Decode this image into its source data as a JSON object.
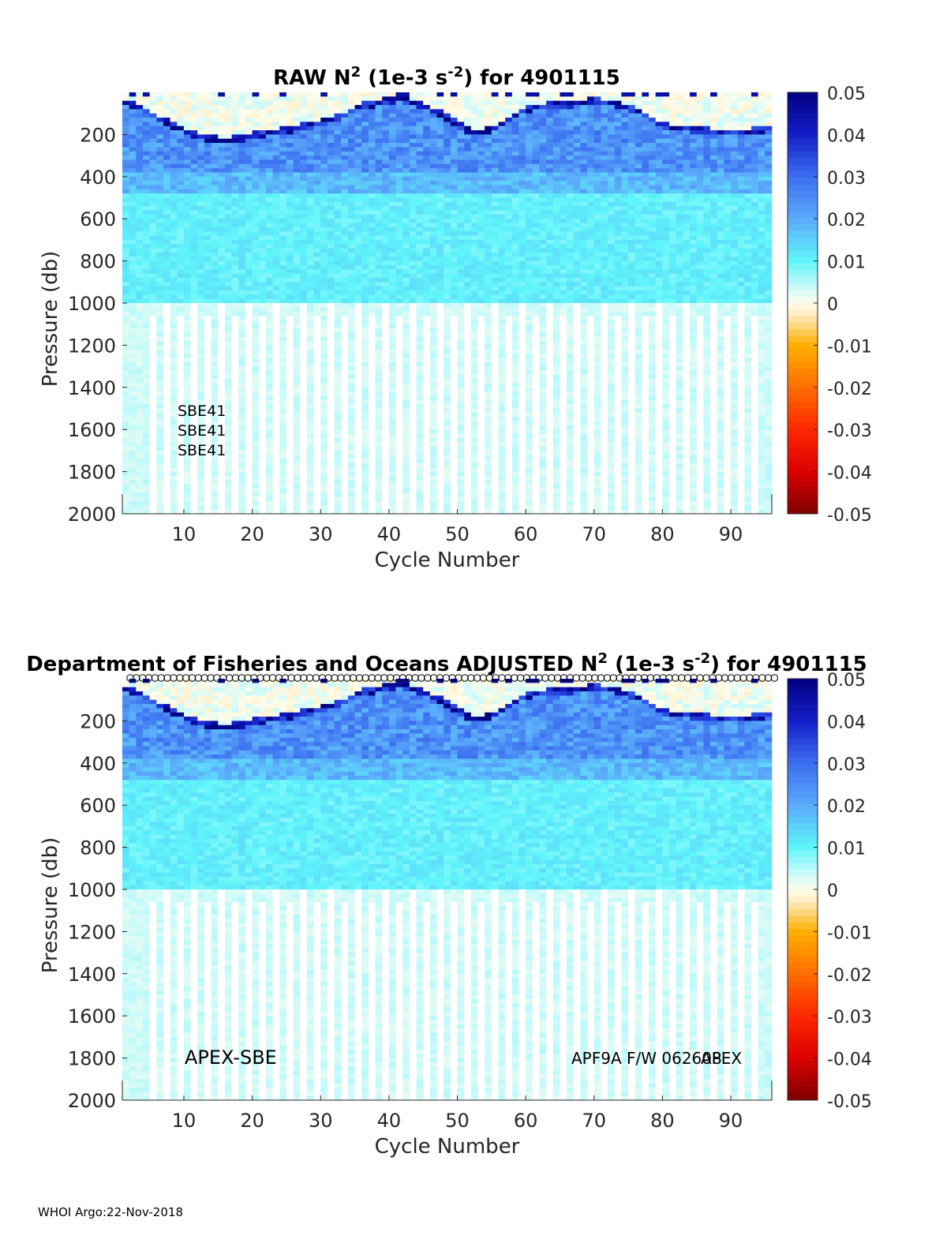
{
  "footer": "WHOI Argo:22-Nov-2018",
  "chart_data": [
    {
      "type": "heatmap",
      "title_prefix": "RAW N",
      "title_exp": "2",
      "title_mid": " (1e-3 s",
      "title_exp2": "-2",
      "title_suffix": ") for 4901115",
      "xlabel": "Cycle Number",
      "ylabel": "Pressure (db)",
      "xlim": [
        1,
        95
      ],
      "ylim": [
        2000,
        0
      ],
      "xticks": [
        10,
        20,
        30,
        40,
        50,
        60,
        70,
        80,
        90
      ],
      "yticks": [
        200,
        400,
        600,
        800,
        1000,
        1200,
        1400,
        1600,
        1800,
        2000
      ],
      "clim": [
        -0.05,
        0.05
      ],
      "cticks": [
        "0.05",
        "0.04",
        "0.03",
        "0.02",
        "0.01",
        "0",
        "-0.01",
        "-0.02",
        "-0.03",
        "-0.04",
        "-0.05"
      ],
      "annotations": [
        "SBE41",
        "SBE41",
        "SBE41"
      ],
      "markers_top": false,
      "mixed_layer_depth": [
        40,
        45,
        60,
        80,
        100,
        115,
        130,
        145,
        160,
        175,
        185,
        195,
        205,
        210,
        215,
        212,
        208,
        205,
        200,
        190,
        185,
        180,
        175,
        170,
        165,
        158,
        150,
        145,
        140,
        130,
        120,
        110,
        100,
        80,
        60,
        50,
        45,
        40,
        30,
        25,
        20,
        30,
        40,
        50,
        60,
        75,
        90,
        110,
        130,
        150,
        165,
        175,
        180,
        170,
        160,
        140,
        120,
        100,
        80,
        70,
        60,
        55,
        50,
        50,
        48,
        45,
        40,
        35,
        30,
        30,
        35,
        40,
        45,
        55,
        65,
        80,
        100,
        120,
        140,
        150,
        155,
        155,
        160,
        165,
        170,
        170,
        175,
        175,
        180,
        180,
        175,
        175,
        170,
        165,
        160
      ],
      "deep_gap_cycles": [
        5,
        6,
        7,
        8,
        9,
        10,
        11,
        12,
        13,
        14,
        15,
        16,
        17,
        18,
        19,
        20,
        21,
        22,
        23,
        24,
        25,
        26,
        27,
        28,
        29,
        30,
        31,
        32,
        33,
        34,
        35,
        36,
        37,
        38,
        39,
        40,
        41,
        42,
        43,
        44,
        45,
        46,
        47,
        48,
        49,
        50,
        51,
        52,
        53,
        54,
        55,
        56,
        57,
        58,
        59,
        60,
        61,
        62,
        63,
        64,
        65,
        66,
        67,
        68,
        69,
        70,
        71,
        72,
        73,
        74,
        75,
        76,
        77,
        78,
        79,
        80,
        81,
        82,
        83,
        84,
        85,
        86,
        87,
        88,
        89,
        90,
        91,
        92,
        93,
        94
      ]
    },
    {
      "type": "heatmap",
      "title_prefix": "Department of Fisheries and Oceans  ADJUSTED N",
      "title_exp": "2",
      "title_mid": " (1e-3 s",
      "title_exp2": "-2",
      "title_suffix": ") for 4901115",
      "xlabel": "Cycle Number",
      "ylabel": "Pressure (db)",
      "xlim": [
        1,
        95
      ],
      "ylim": [
        2000,
        0
      ],
      "xticks": [
        10,
        20,
        30,
        40,
        50,
        60,
        70,
        80,
        90
      ],
      "yticks": [
        200,
        400,
        600,
        800,
        1000,
        1200,
        1400,
        1600,
        1800,
        2000
      ],
      "clim": [
        -0.05,
        0.05
      ],
      "cticks": [
        "0.05",
        "0.04",
        "0.03",
        "0.02",
        "0.01",
        "0",
        "-0.01",
        "-0.02",
        "-0.03",
        "-0.04",
        "-0.05"
      ],
      "annotations": [
        "APEX-SBE",
        "APF9A F/W 062608",
        "APEX"
      ],
      "markers_top": true,
      "mixed_layer_depth": [
        40,
        45,
        60,
        80,
        100,
        115,
        130,
        145,
        160,
        175,
        185,
        195,
        205,
        210,
        215,
        212,
        208,
        205,
        200,
        190,
        185,
        180,
        175,
        170,
        165,
        158,
        150,
        145,
        140,
        130,
        120,
        110,
        100,
        80,
        60,
        50,
        45,
        40,
        30,
        25,
        20,
        30,
        40,
        50,
        60,
        75,
        90,
        110,
        130,
        150,
        165,
        175,
        180,
        170,
        160,
        140,
        120,
        100,
        80,
        70,
        60,
        55,
        50,
        50,
        48,
        45,
        40,
        35,
        30,
        30,
        35,
        40,
        45,
        55,
        65,
        80,
        100,
        120,
        140,
        150,
        155,
        155,
        160,
        165,
        170,
        170,
        175,
        175,
        180,
        180,
        175,
        175,
        170,
        165,
        160
      ]
    }
  ]
}
